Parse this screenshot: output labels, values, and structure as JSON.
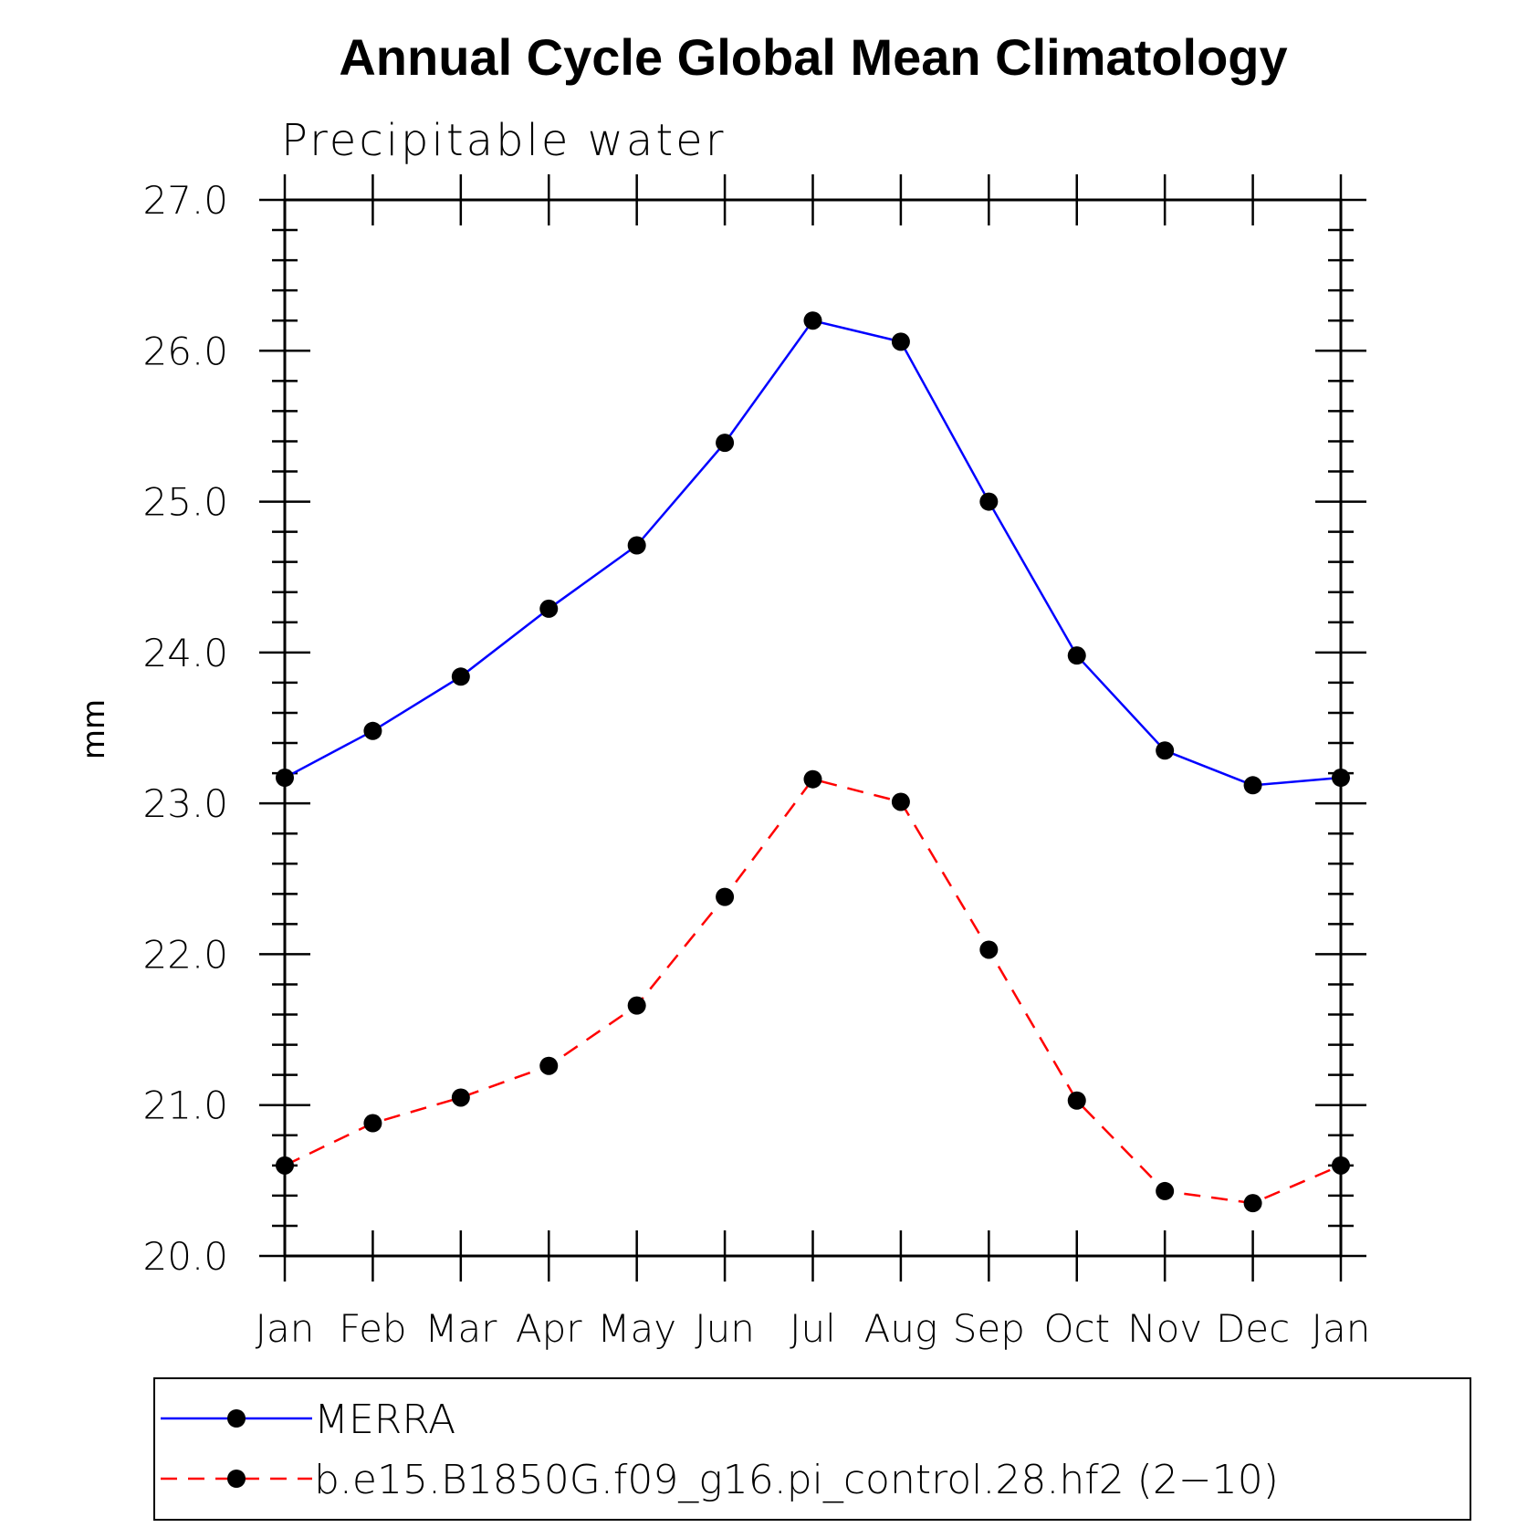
{
  "chart_data": {
    "type": "line",
    "title": "Annual Cycle Global Mean Climatology",
    "subtitle": "Precipitable water",
    "xlabel": "",
    "ylabel": "mm",
    "categories": [
      "Jan",
      "Feb",
      "Mar",
      "Apr",
      "May",
      "Jun",
      "Jul",
      "Aug",
      "Sep",
      "Oct",
      "Nov",
      "Dec",
      "Jan"
    ],
    "ylim": [
      20.0,
      27.0
    ],
    "yticks": [
      "20.0",
      "21.0",
      "22.0",
      "23.0",
      "24.0",
      "25.0",
      "26.0",
      "27.0"
    ],
    "grid": false,
    "legend_position": "bottom",
    "series": [
      {
        "name": "MERRA",
        "color": "#0000ff",
        "line_style": "solid",
        "marker": "filled-circle",
        "values": [
          23.17,
          23.48,
          23.84,
          24.29,
          24.71,
          25.39,
          26.2,
          26.06,
          25.0,
          23.98,
          23.35,
          23.12,
          23.17
        ]
      },
      {
        "name": "b.e15.B1850G.f09_g16.pi_control.28.hf2 (2−10)",
        "color": "#ff0000",
        "line_style": "dashed",
        "marker": "filled-circle",
        "values": [
          20.6,
          20.88,
          21.05,
          21.26,
          21.66,
          22.38,
          23.16,
          23.01,
          22.03,
          21.03,
          20.43,
          20.35,
          20.6
        ]
      }
    ]
  }
}
